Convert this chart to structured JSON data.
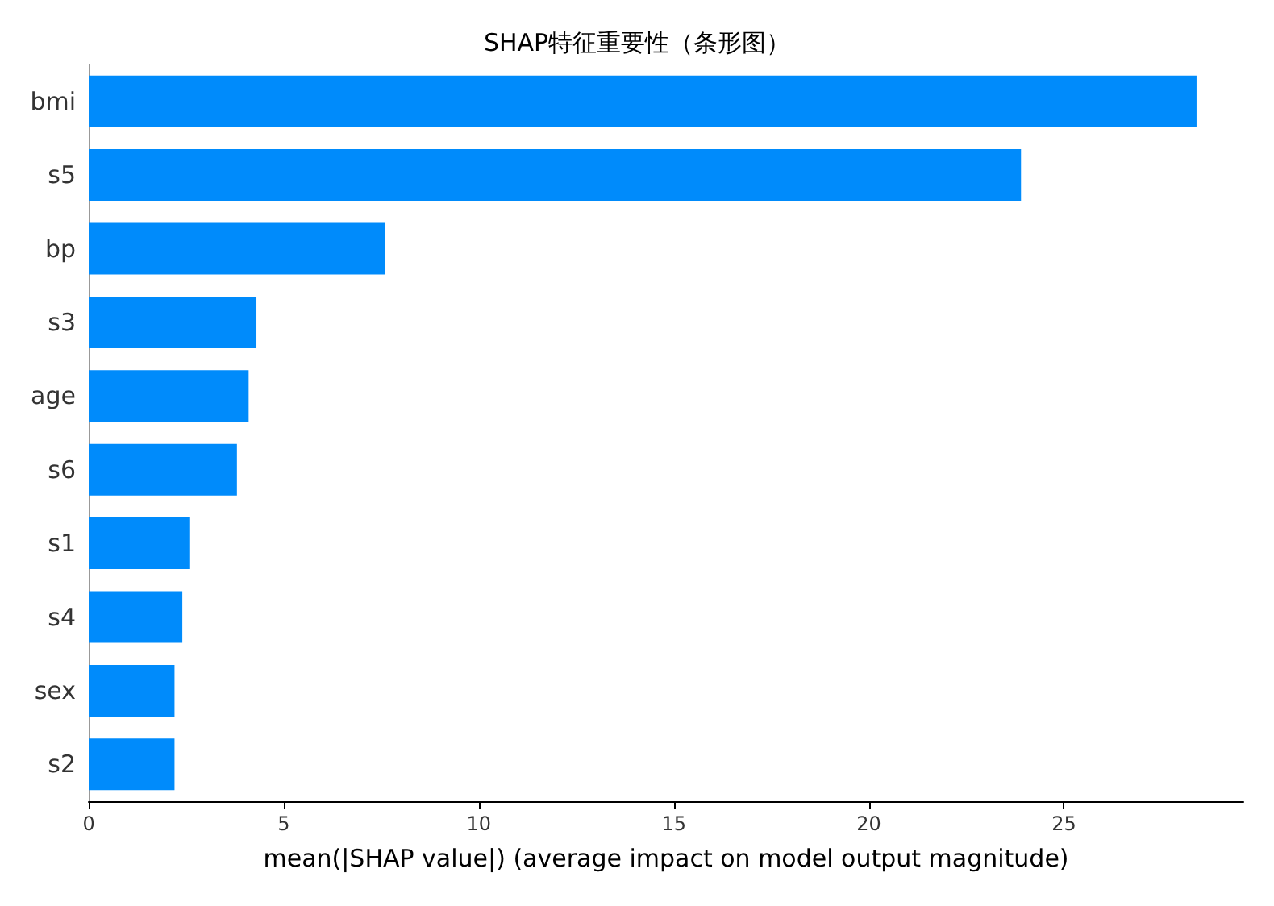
{
  "chart_data": {
    "type": "bar",
    "orientation": "horizontal",
    "title": "SHAP特征重要性（条形图）",
    "xlabel": "mean(|SHAP value|) (average impact on model output magnitude)",
    "categories": [
      "bmi",
      "s5",
      "bp",
      "s3",
      "age",
      "s6",
      "s1",
      "s4",
      "sex",
      "s2"
    ],
    "values": [
      28.4,
      23.9,
      7.6,
      4.3,
      4.1,
      3.8,
      2.6,
      2.4,
      2.2,
      2.2
    ],
    "color": "#008bfb",
    "xlim": [
      0,
      29.6
    ],
    "xticks": [
      0,
      5,
      10,
      15,
      20,
      25
    ],
    "grid": false
  }
}
